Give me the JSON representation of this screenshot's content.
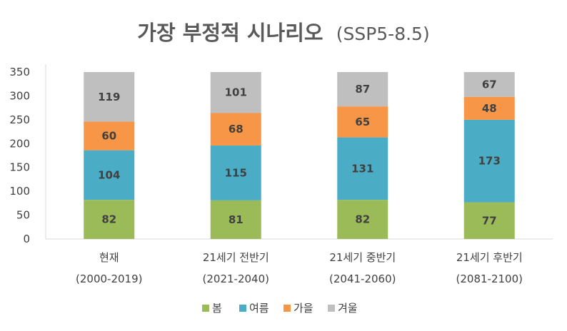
{
  "chart_data": {
    "type": "bar",
    "stacked": true,
    "title": "가장 부정적 시나리오",
    "subtitle": "(SSP5-8.5)",
    "categories": [
      {
        "name": "현재",
        "period": "(2000-2019)"
      },
      {
        "name": "21세기 전반기",
        "period": "(2021-2040)"
      },
      {
        "name": "21세기 중반기",
        "period": "(2041-2060)"
      },
      {
        "name": "21세기 후반기",
        "period": "(2081-2100)"
      }
    ],
    "series": [
      {
        "name": "봄",
        "color": "#9BBB59",
        "values": [
          82,
          81,
          82,
          77
        ]
      },
      {
        "name": "여름",
        "color": "#4BACC6",
        "values": [
          104,
          115,
          131,
          173
        ]
      },
      {
        "name": "가을",
        "color": "#F79646",
        "values": [
          60,
          68,
          65,
          48
        ]
      },
      {
        "name": "겨울",
        "color": "#BFBFBF",
        "values": [
          119,
          101,
          87,
          67
        ]
      }
    ],
    "ylim": [
      0,
      350
    ],
    "yticks": [
      0,
      50,
      100,
      150,
      200,
      250,
      300,
      350
    ],
    "grid": false,
    "legend": "bottom",
    "data_labels": true
  }
}
